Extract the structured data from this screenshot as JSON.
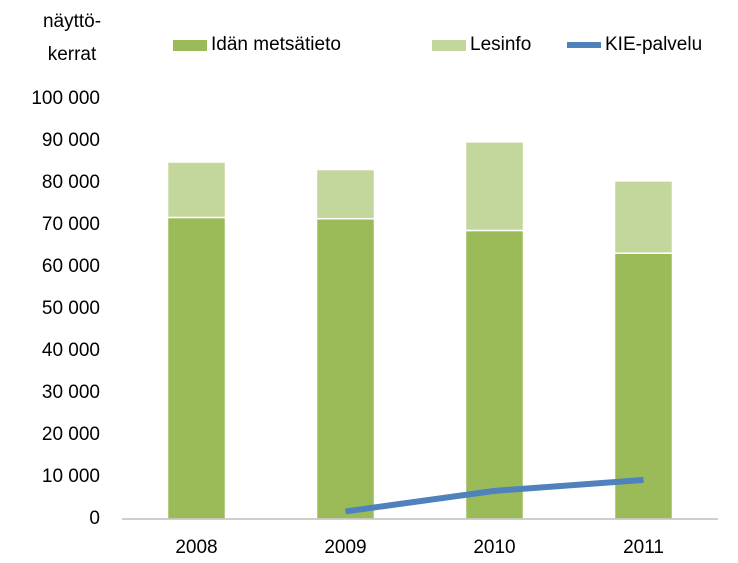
{
  "chart_data": {
    "type": "bar",
    "stacked": true,
    "ylabel": "näyttö-\nkerrat",
    "categories": [
      "2008",
      "2009",
      "2010",
      "2011"
    ],
    "series": [
      {
        "name": "Idän metsätieto",
        "color": "#9bbb59",
        "type": "bar",
        "values": [
          71800,
          71500,
          68700,
          63300
        ]
      },
      {
        "name": "Lesinfo",
        "color": "#c3d69b",
        "type": "bar",
        "values": [
          13200,
          11700,
          21100,
          17200
        ]
      },
      {
        "name": "KIE-palvelu",
        "color": "#4f81bd",
        "type": "line",
        "values": [
          null,
          1800,
          6700,
          9300
        ]
      }
    ],
    "ylim": [
      0,
      100000
    ],
    "yticks": [
      0,
      {
        "value": 10000,
        "label": "10 000"
      },
      {
        "value": 20000,
        "label": "20 000"
      },
      {
        "value": 30000,
        "label": "30 000"
      },
      {
        "value": 40000,
        "label": "40 000"
      },
      {
        "value": 50000,
        "label": "50 000"
      },
      {
        "value": 60000,
        "label": "60 000"
      },
      {
        "value": 70000,
        "label": "70 000"
      },
      {
        "value": 80000,
        "label": "80 000"
      },
      {
        "value": 90000,
        "label": "90 000"
      },
      {
        "value": 100000,
        "label": "100 000"
      }
    ],
    "grid": false,
    "legend": "top"
  }
}
